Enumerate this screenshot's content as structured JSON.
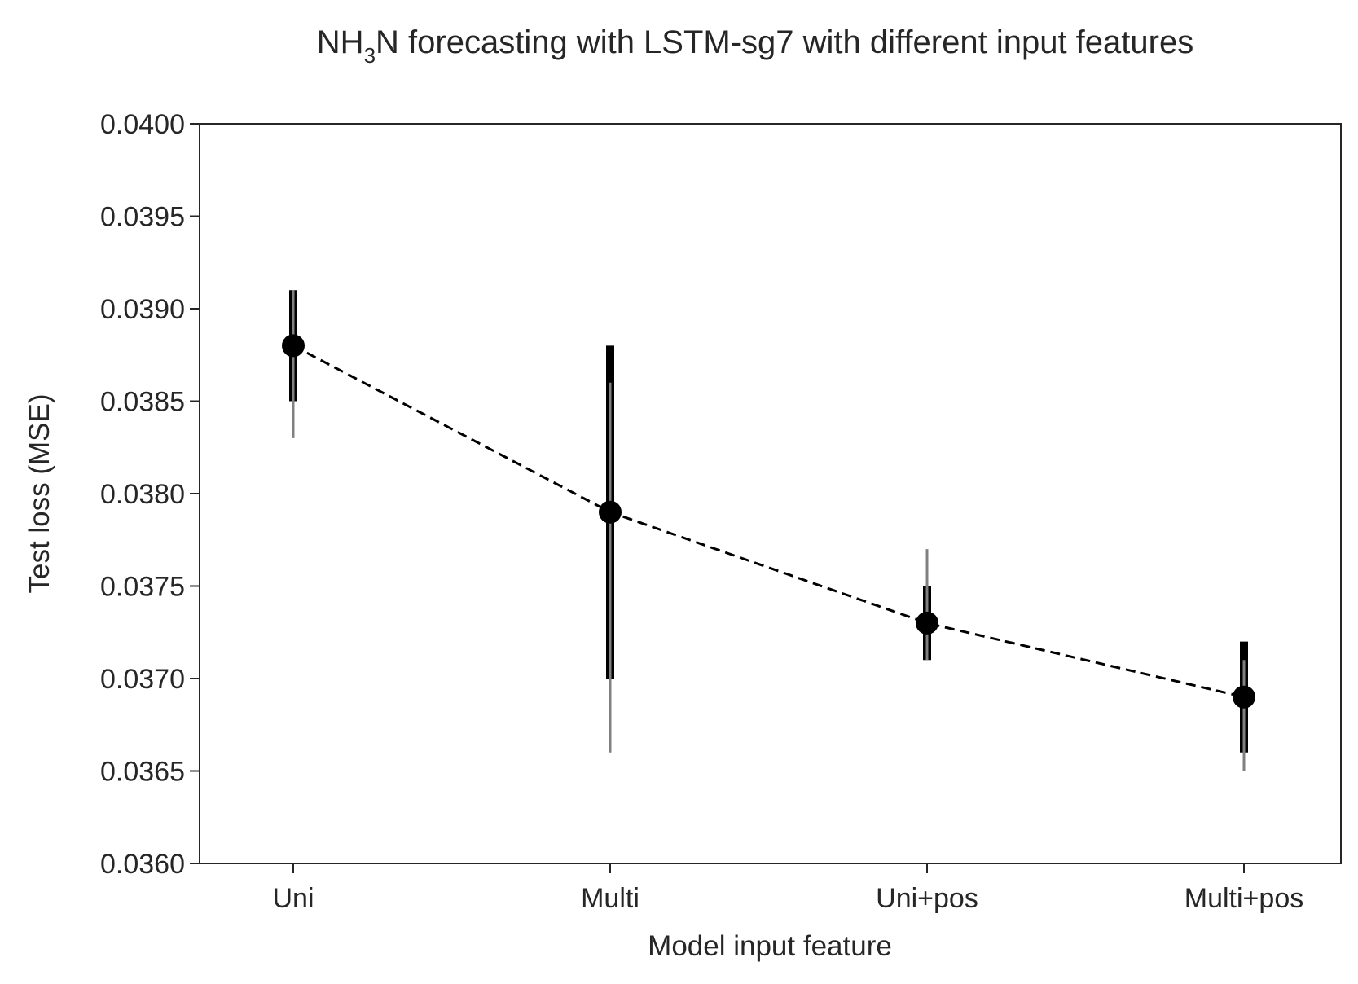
{
  "chart_data": {
    "type": "line",
    "title": {
      "prefix": "NH",
      "subscript": "3",
      "suffix": "N forecasting with LSTM-sg7 with different input features"
    },
    "xlabel": "Model input feature",
    "ylabel": "Test loss (MSE)",
    "categories": [
      "Uni",
      "Multi",
      "Uni+pos",
      "Multi+pos"
    ],
    "ylim": [
      0.036,
      0.04
    ],
    "yticks": [
      "0.0360",
      "0.0365",
      "0.0370",
      "0.0375",
      "0.0380",
      "0.0385",
      "0.0390",
      "0.0395",
      "0.0400"
    ],
    "ytick_values": [
      0.036,
      0.0365,
      0.037,
      0.0375,
      0.038,
      0.0385,
      0.039,
      0.0395,
      0.04
    ],
    "grid": false,
    "series": [
      {
        "values": [
          0.0388,
          0.0379,
          0.0373,
          0.0369
        ],
        "line_style": "dashed",
        "color": "#000000",
        "thick_interval_low": [
          0.0385,
          0.037,
          0.0371,
          0.0366
        ],
        "thick_interval_high": [
          0.0391,
          0.0388,
          0.0375,
          0.0372
        ],
        "thin_interval_low": [
          0.0383,
          0.0366,
          0.0371,
          0.0365
        ],
        "thin_interval_high": [
          0.0391,
          0.0386,
          0.0377,
          0.0371
        ]
      }
    ],
    "colors": {
      "thick_bar": "#000000",
      "thin_bar": "#808080",
      "axes": "#262626"
    }
  }
}
